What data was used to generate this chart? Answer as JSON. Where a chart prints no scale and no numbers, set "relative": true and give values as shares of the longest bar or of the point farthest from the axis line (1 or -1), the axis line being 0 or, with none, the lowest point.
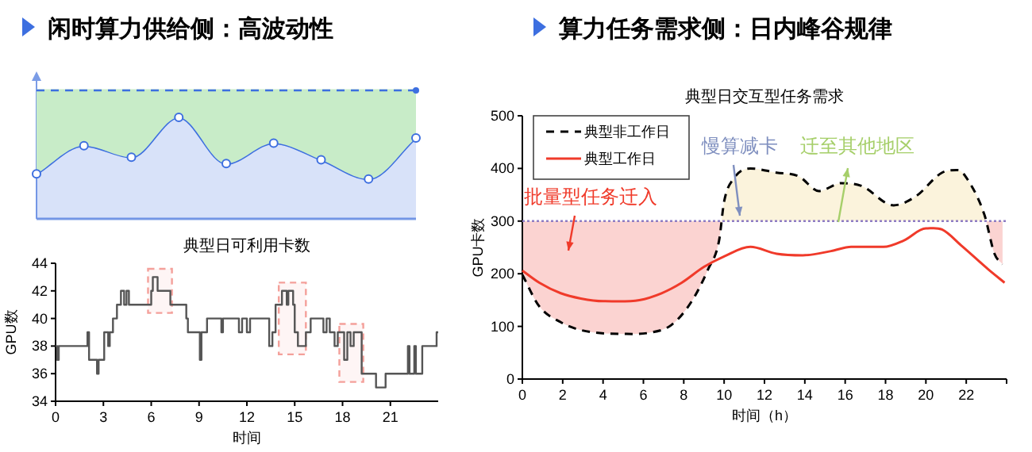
{
  "chart_data": [
    {
      "type": "area",
      "stacked": true,
      "title": "闲时算力供给侧：高波动性",
      "relative": true,
      "categories": [
        null,
        null,
        null,
        null,
        null,
        null,
        null,
        null,
        null
      ],
      "series": [
        {
          "color": "#3d6fe0",
          "marker": "circle",
          "values": [
            0.35,
            0.57,
            0.48,
            0.79,
            0.43,
            0.59,
            0.46,
            0.31,
            0.63
          ]
        },
        {
          "color": "#c8ecc8",
          "values": [
            0.65,
            0.43,
            0.52,
            0.21,
            0.57,
            0.41,
            0.54,
            0.69,
            0.37
          ]
        }
      ],
      "ref_lines": [
        {
          "axis": "y",
          "value": 1,
          "color": "#3d6fe0",
          "line_style": "dashed"
        }
      ]
    },
    {
      "type": "step",
      "title": "典型日可利用卡数",
      "xlabel": "时间",
      "ylabel": "GPU数",
      "color": "#555555",
      "x": [
        0,
        0.1,
        0.2,
        2.0,
        2.1,
        2.6,
        2.7,
        3.05,
        3.3,
        3.4,
        3.6,
        3.85,
        4.1,
        4.3,
        4.45,
        4.6,
        6.0,
        6.1,
        6.4,
        7.2,
        8.2,
        8.3,
        9.05,
        9.15,
        9.5,
        10.4,
        10.5,
        11.5,
        11.7,
        12.0,
        12.2,
        13.4,
        13.6,
        13.8,
        14.2,
        14.5,
        14.6,
        14.9,
        15.0,
        15.2,
        15.7,
        16.0,
        16.8,
        17.0,
        17.2,
        17.5,
        17.7,
        18.1,
        18.3,
        18.5,
        18.7,
        19.2,
        20.1,
        20.7,
        22.1,
        22.2,
        22.5,
        22.6,
        23.0,
        23.9
      ],
      "values": [
        38,
        37,
        38,
        39,
        37,
        36,
        37,
        39,
        38,
        39,
        40,
        41,
        42,
        41,
        42,
        41,
        42,
        43,
        42,
        41,
        40,
        39,
        37,
        39,
        40,
        39,
        40,
        39,
        40,
        39,
        40,
        38,
        39,
        41,
        42,
        41,
        42,
        41,
        39,
        38,
        39,
        40,
        39,
        40,
        39,
        38,
        39,
        37,
        39,
        38,
        39,
        36,
        35,
        36,
        38,
        36,
        38,
        36,
        38,
        39
      ],
      "xlim": [
        0,
        24
      ],
      "xticks": [
        0,
        3,
        6,
        9,
        12,
        15,
        18,
        21
      ],
      "ylim": [
        34,
        44
      ],
      "yticks": [
        34,
        36,
        38,
        40,
        42,
        44
      ],
      "bands": [
        {
          "axis": "x",
          "from": 5.8,
          "to": 7.3,
          "color": "#f4a09a"
        },
        {
          "axis": "x",
          "from": 14,
          "to": 15.7,
          "color": "#f4a09a"
        },
        {
          "axis": "x",
          "from": 17.8,
          "to": 19.3,
          "color": "#f4a09a"
        }
      ]
    },
    {
      "type": "line",
      "subtitle": "算力任务需求侧：日内峰谷规律",
      "title": "典型日交互型任务需求",
      "xlabel": "时间（h）",
      "ylabel": "GPU卡数",
      "legend": "top left",
      "xlim": [
        0,
        24
      ],
      "xticks": [
        0,
        2,
        4,
        6,
        8,
        10,
        12,
        14,
        16,
        18,
        20,
        22,
        {
          "value": 24,
          "label": null
        }
      ],
      "ylim": [
        0,
        500
      ],
      "yticks": [
        0,
        100,
        200,
        300,
        400,
        500
      ],
      "series": [
        {
          "name": "典型非工作日",
          "color": "#000000",
          "line_style": "dashed",
          "x": [
            0,
            0.84,
            1.9,
            2.9,
            4.8,
            6.3,
            7.4,
            8.4,
            9.2,
            9.75,
            10,
            10.5,
            11.3,
            12.6,
            13.7,
            14.7,
            15.8,
            16.8,
            18.4,
            19.5,
            20.8,
            21.6,
            22.1,
            22.9,
            23.4,
            23.8
          ],
          "values": [
            198,
            138,
            108,
            93,
            86,
            88,
            103,
            148,
            208,
            263,
            337,
            382,
            400,
            392,
            385,
            357,
            372,
            367,
            330,
            347,
            392,
            397,
            377,
            312,
            238,
            218
          ]
        },
        {
          "name": "典型工作日",
          "color": "#f03a2a",
          "line_style": "solid",
          "x": [
            0,
            0.84,
            1.9,
            2.9,
            4,
            5.8,
            6.9,
            7.9,
            9,
            10,
            11.3,
            12.6,
            13.9,
            15.3,
            16.3,
            17.9,
            18.9,
            20,
            20.8,
            21.8,
            23.1,
            23.9
          ],
          "values": [
            206,
            183,
            163,
            153,
            148,
            150,
            163,
            183,
            213,
            233,
            251,
            238,
            235,
            243,
            251,
            251,
            263,
            286,
            284,
            252,
            208,
            183
          ]
        }
      ],
      "ref_lines": [
        {
          "axis": "y",
          "value": 300,
          "color": "#8e7cc3",
          "line_style": "dotted"
        }
      ],
      "annotations": [
        "批量型任务迁入",
        "慢算减卡",
        "迁至其他地区"
      ]
    }
  ]
}
